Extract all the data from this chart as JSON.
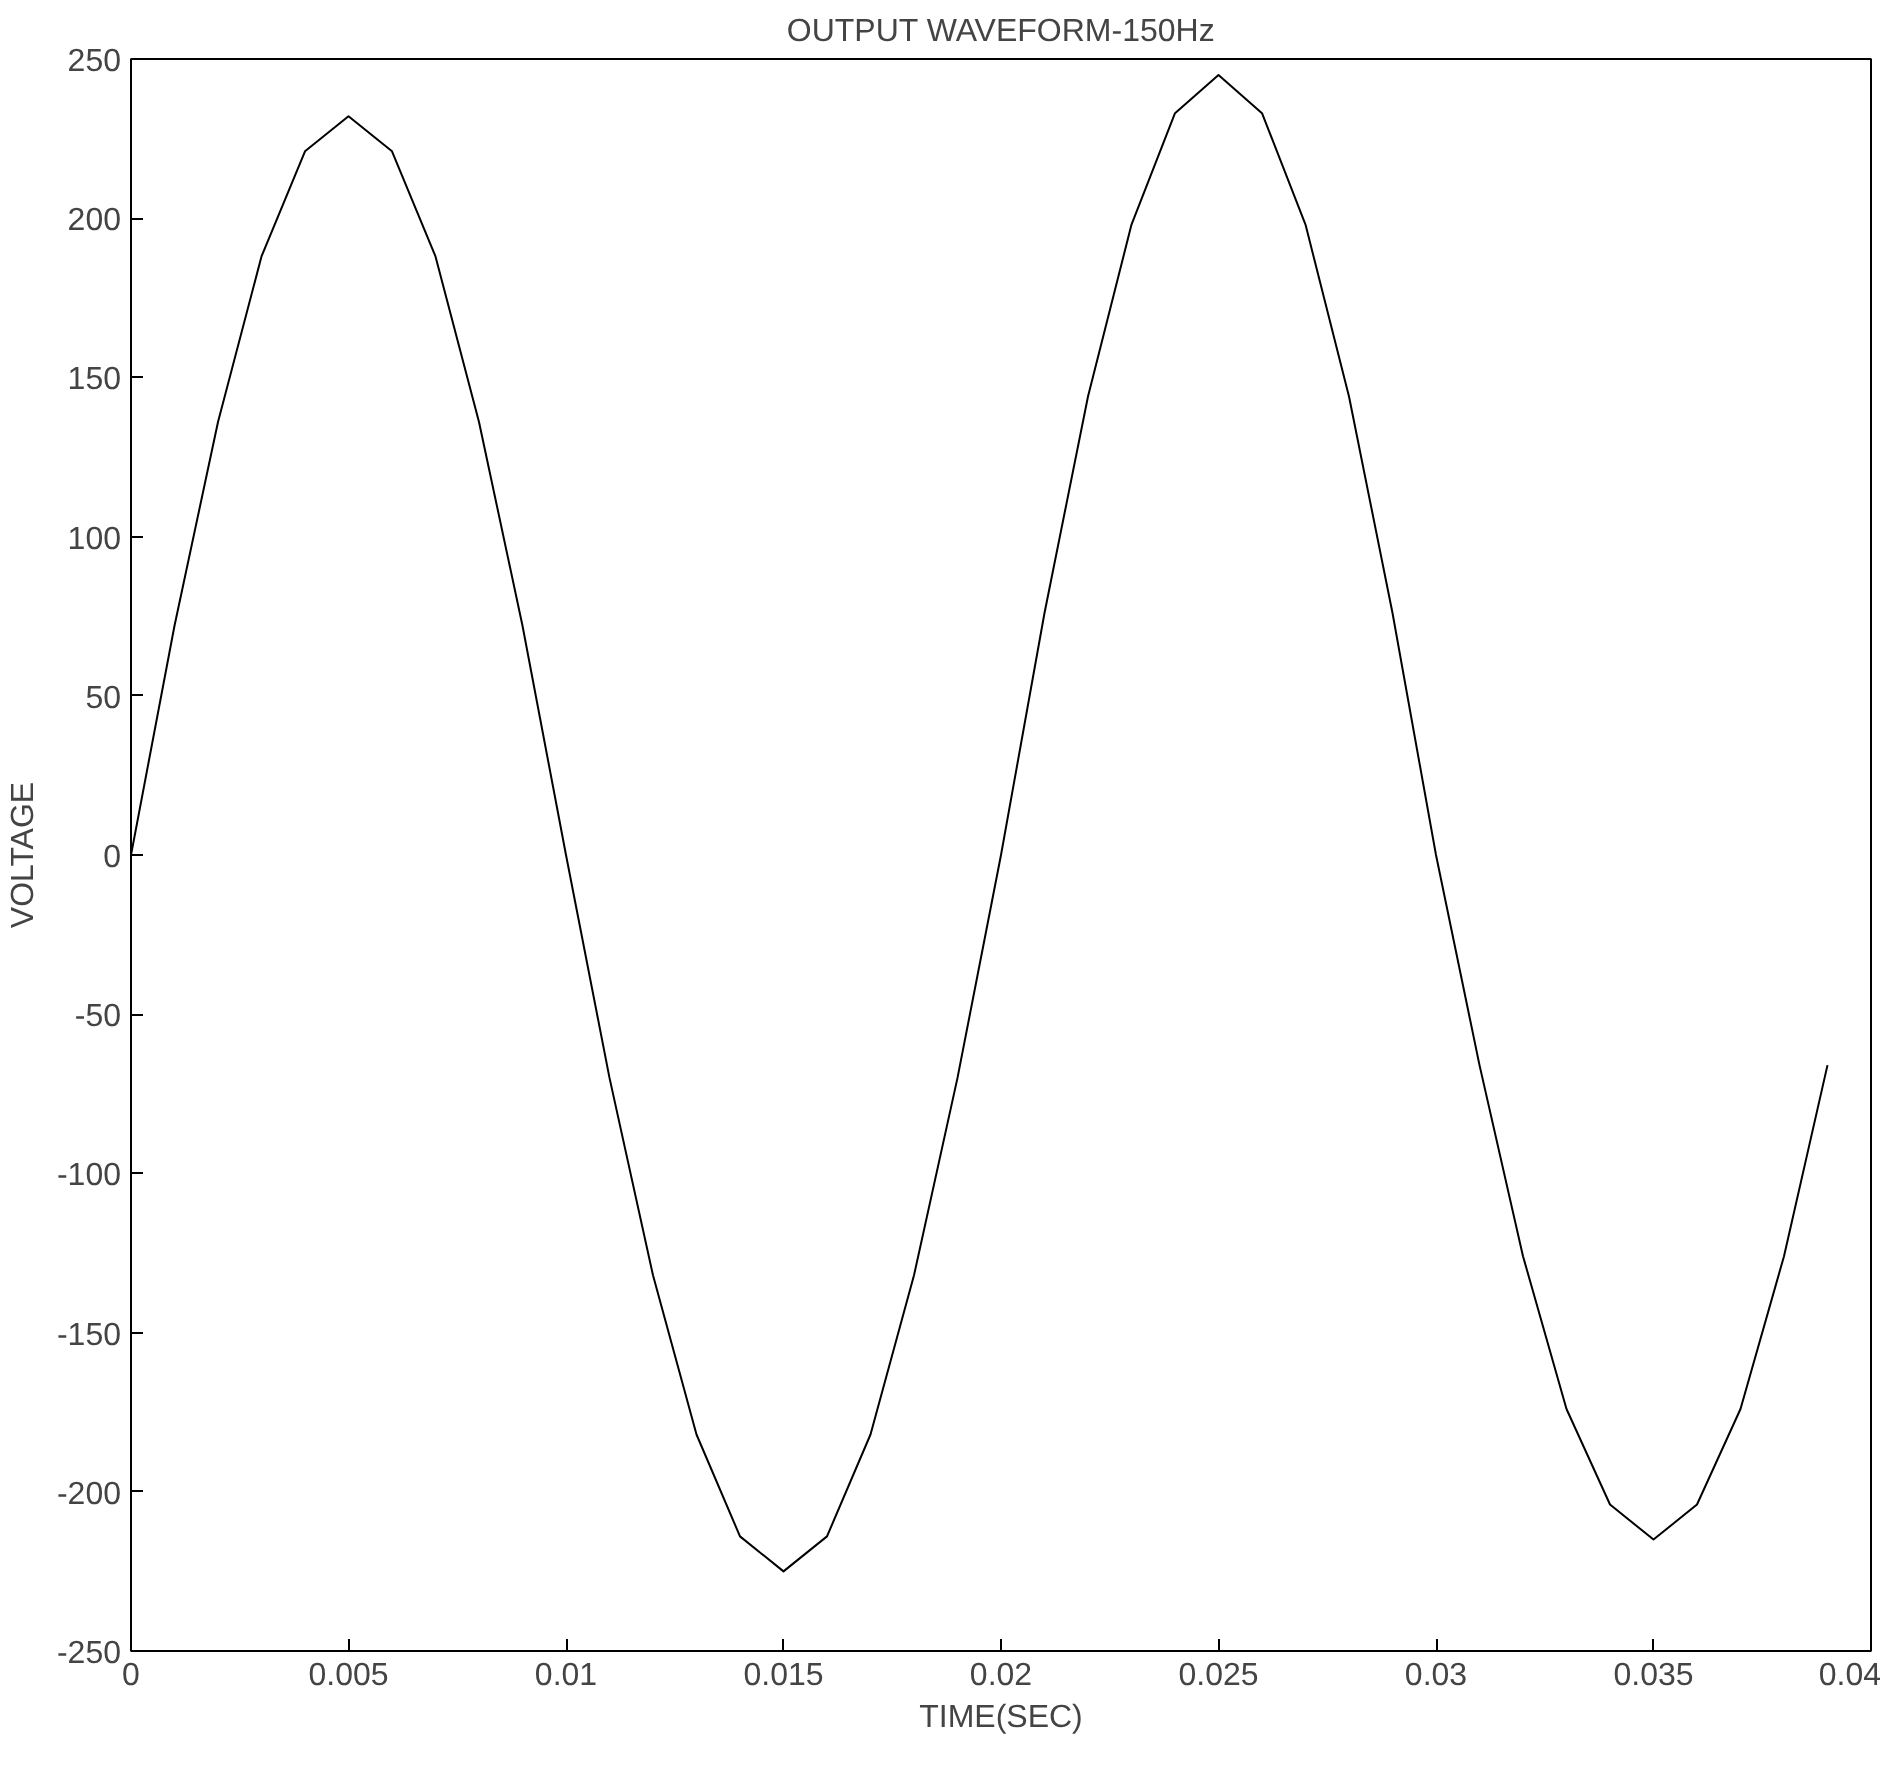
{
  "chart_data": {
    "type": "line",
    "title": "OUTPUT WAVEFORM-150Hz",
    "xlabel": "TIME(SEC)",
    "ylabel": "VOLTAGE",
    "x": [
      0,
      0.001,
      0.002,
      0.003,
      0.004,
      0.005,
      0.006,
      0.007,
      0.008,
      0.009,
      0.01,
      0.011,
      0.012,
      0.013,
      0.014,
      0.015,
      0.016,
      0.017,
      0.018,
      0.019,
      0.02,
      0.021,
      0.022,
      0.023,
      0.024,
      0.025,
      0.026,
      0.027,
      0.028,
      0.029,
      0.03,
      0.031,
      0.032,
      0.033,
      0.034,
      0.035,
      0.036,
      0.037,
      0.038,
      0.039
    ],
    "series": [
      {
        "color": "#000000",
        "values": [
          0,
          72,
          136,
          188,
          221,
          232,
          221,
          188,
          136,
          72,
          0,
          -70,
          -132,
          -182,
          -214,
          -225,
          -214,
          -182,
          -132,
          -70,
          0,
          76,
          144,
          198,
          233,
          245,
          233,
          198,
          144,
          76,
          0,
          -66,
          -126,
          -174,
          -204,
          -215,
          -204,
          -174,
          -126,
          -66
        ]
      }
    ],
    "xlim": [
      0,
      0.04
    ],
    "xticks": [
      0,
      0.005,
      0.01,
      0.015,
      0.02,
      0.025,
      0.03,
      0.035,
      0.04
    ],
    "ylim": [
      -250,
      250
    ],
    "yticks": [
      -250,
      -200,
      -150,
      -100,
      -50,
      0,
      50,
      100,
      150,
      200,
      250
    ],
    "grid": false,
    "marker": "none",
    "line_style": "solid"
  }
}
